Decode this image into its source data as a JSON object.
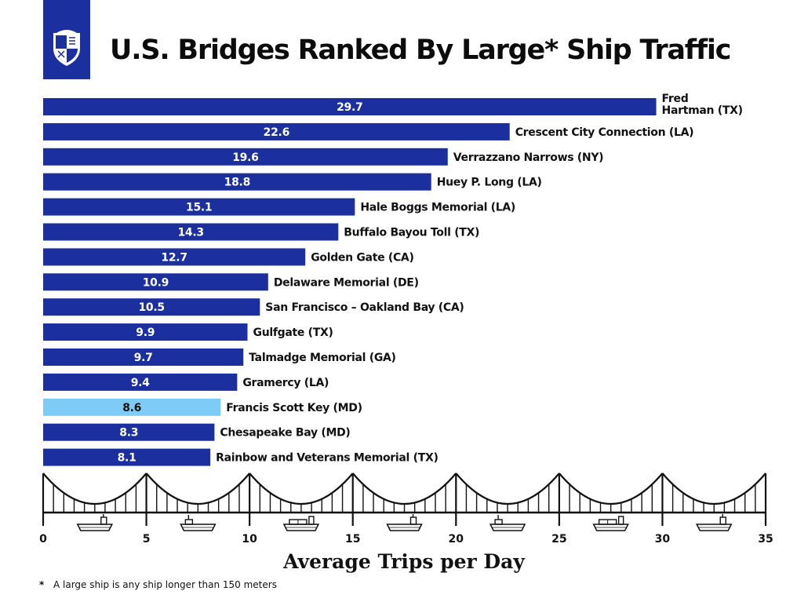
{
  "title": "U.S. Bridges Ranked By Large* Ship Traffic",
  "footnote": {
    "marker": "*",
    "text": "A large ship is any ship longer than 150 meters"
  },
  "colors": {
    "bar": "#1b2f9f",
    "highlight": "#7ecbf7",
    "logo_bg": "#1b2f9f"
  },
  "icons": [
    "university-shield-logo",
    "bridge-cables-icon",
    "ship-icon"
  ],
  "chart_data": {
    "type": "bar",
    "orientation": "horizontal",
    "categories": [
      "Fred Hartman (TX)",
      "Crescent City Connection (LA)",
      "Verrazzano Narrows (NY)",
      "Huey P. Long (LA)",
      "Hale Boggs Memorial (LA)",
      "Buffalo Bayou Toll (TX)",
      "Golden Gate (CA)",
      "Delaware Memorial (DE)",
      "San Francisco – Oakland Bay (CA)",
      "Gulfgate (TX)",
      "Talmadge Memorial (GA)",
      "Gramercy (LA)",
      "Francis Scott Key (MD)",
      "Chesapeake Bay (MD)",
      "Rainbow and Veterans Memorial (TX)"
    ],
    "values": [
      29.7,
      22.6,
      19.6,
      18.8,
      15.1,
      14.3,
      12.7,
      10.9,
      10.5,
      9.9,
      9.7,
      9.4,
      8.6,
      8.3,
      8.1
    ],
    "value_labels": [
      "29.7",
      "22.6",
      "19.6",
      "18.8",
      "15.1",
      "14.3",
      "12.7",
      "10.9",
      "10.5",
      "9.9",
      "9.7",
      "9.4",
      "8.6",
      "8.3",
      "8.1"
    ],
    "highlighted_category": "Francis Scott Key (MD)",
    "xlabel": "Average Trips per Day",
    "ylabel": "",
    "xlim": [
      0,
      35
    ],
    "xticks": [
      0,
      5,
      10,
      15,
      20,
      25,
      30,
      35
    ],
    "xtick_labels": [
      "0",
      "5",
      "10",
      "15",
      "20",
      "25",
      "30",
      "35"
    ],
    "grid": false,
    "legend": "none"
  }
}
